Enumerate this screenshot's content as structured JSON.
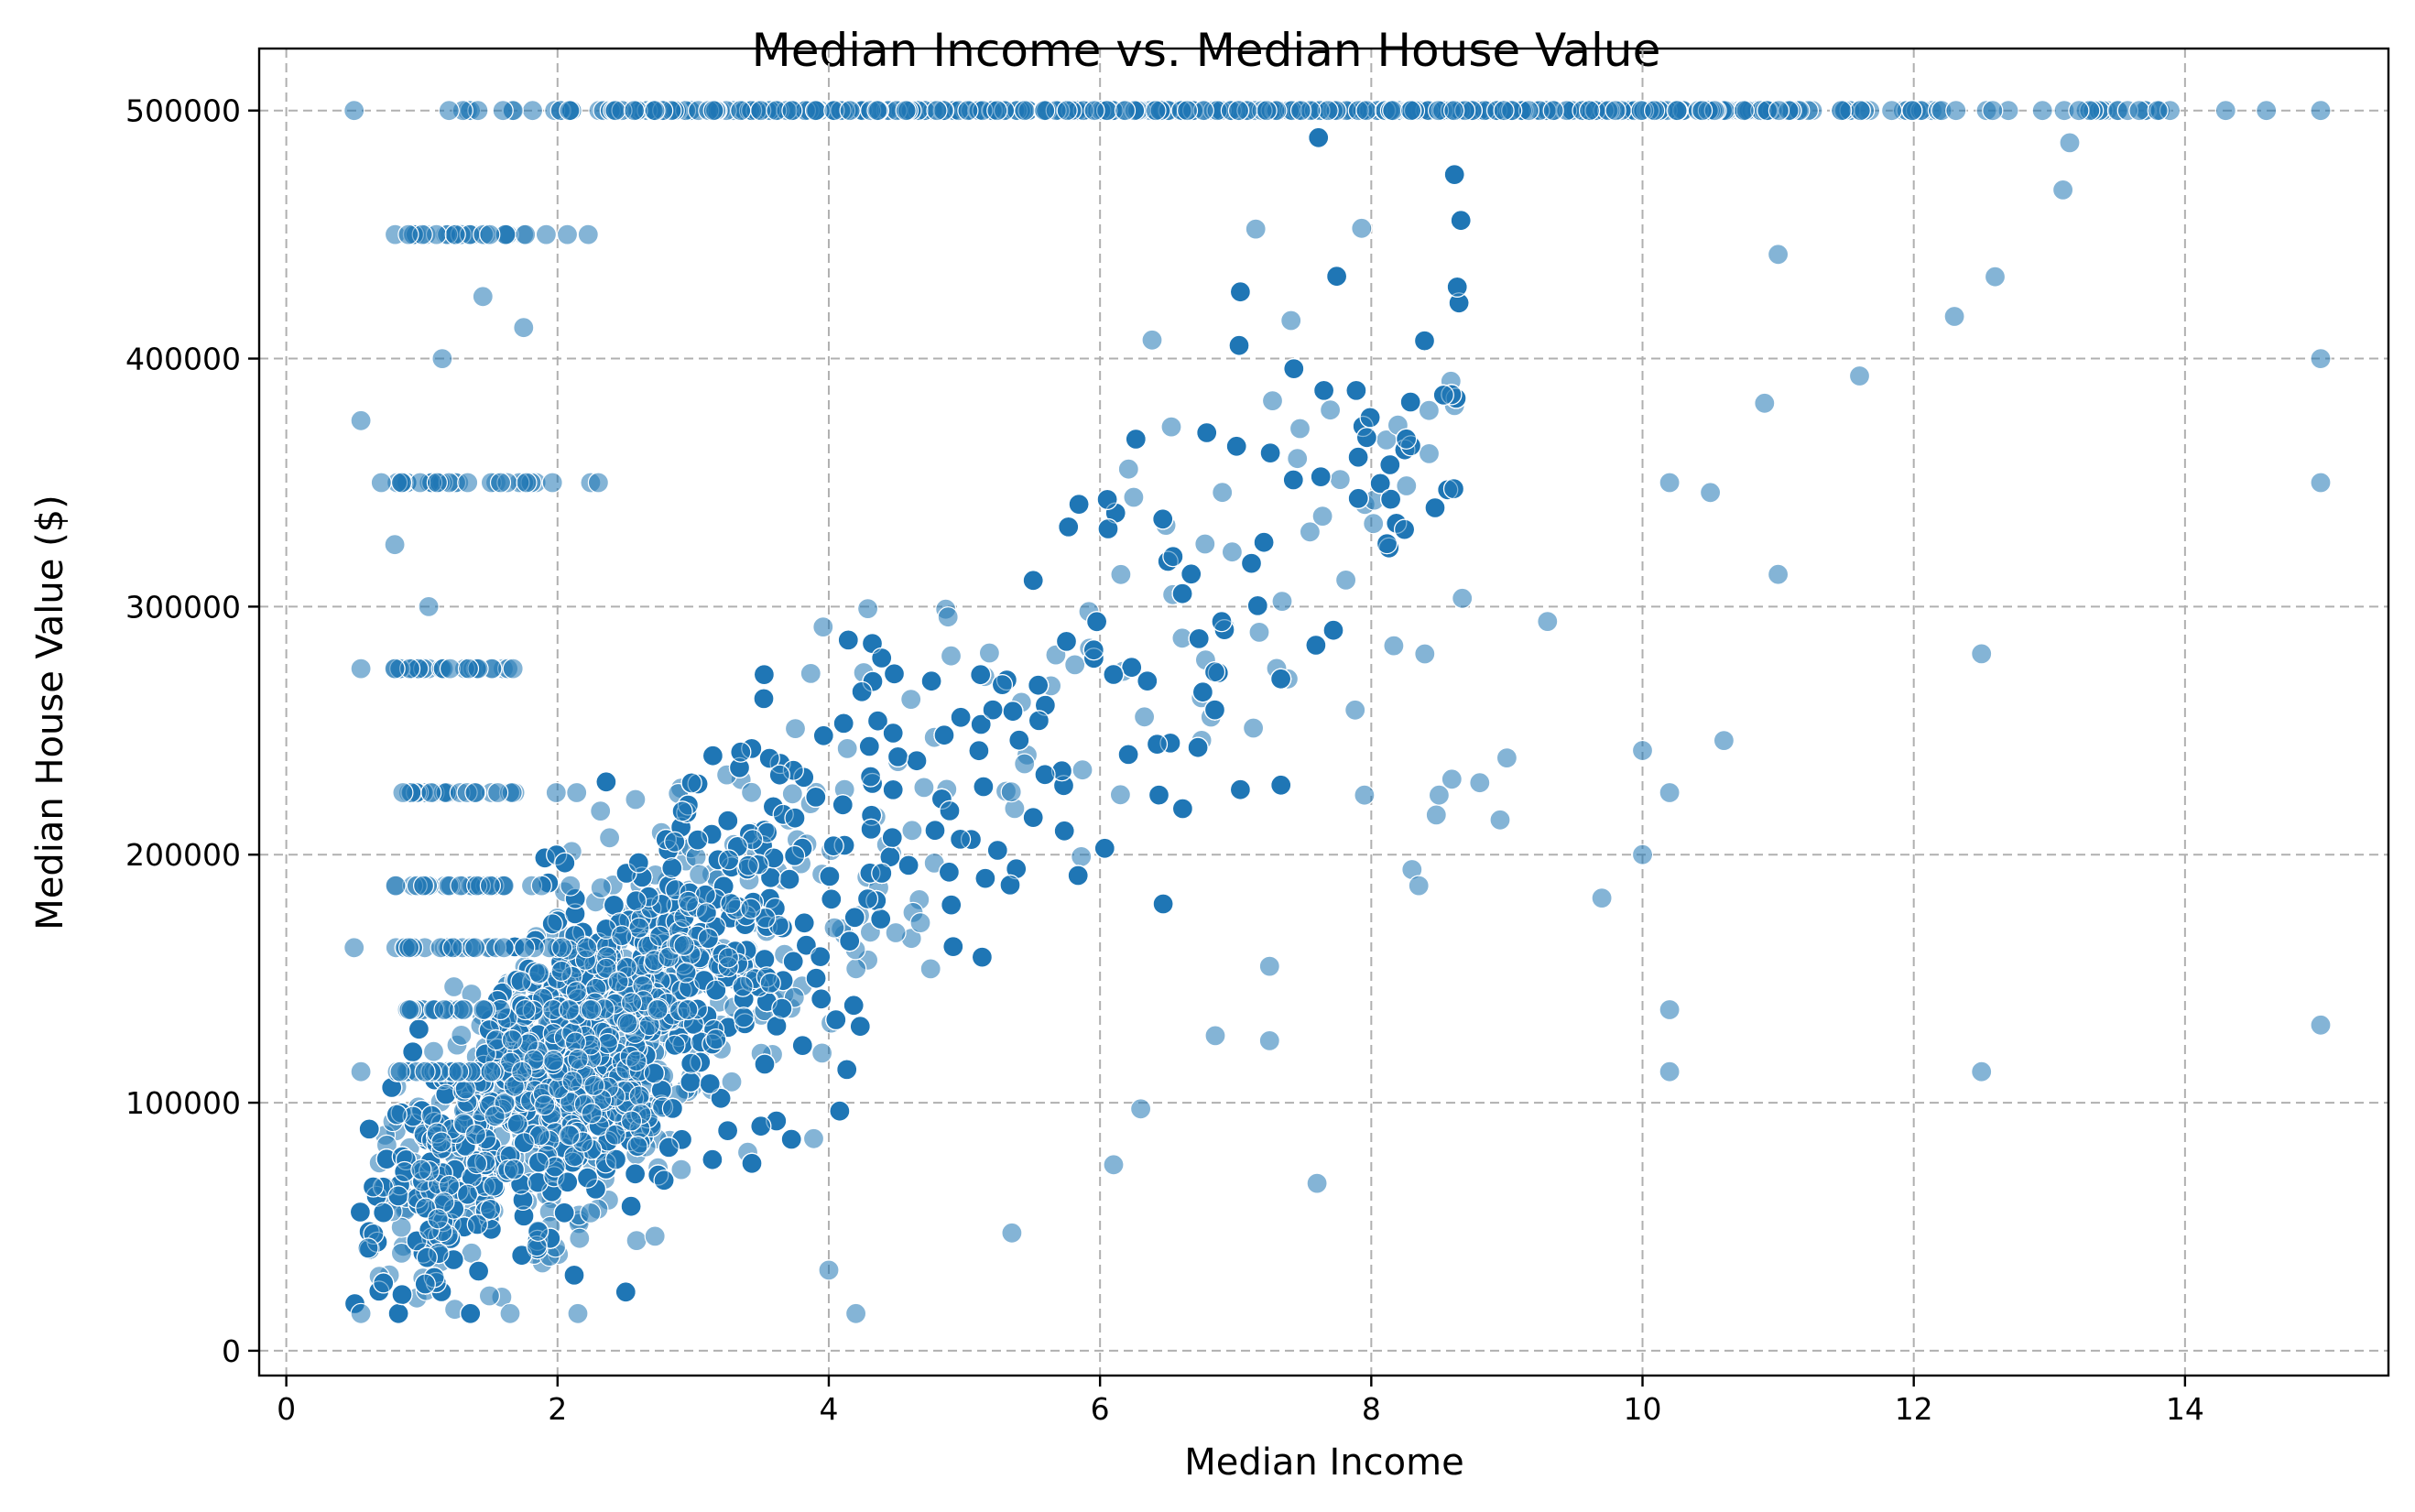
{
  "chart_data": {
    "type": "scatter",
    "title": "Median Income vs. Median House Value",
    "xlabel": "Median Income",
    "ylabel": "Median House Value ($)",
    "xlim": [
      -0.2,
      15.5
    ],
    "ylim": [
      -10000,
      525000
    ],
    "xticks": [
      0,
      2,
      4,
      6,
      8,
      10,
      12,
      14
    ],
    "yticks": [
      0,
      100000,
      200000,
      300000,
      400000,
      500000
    ],
    "grid": true,
    "point_color": "#1f77b4",
    "point_alpha": 0.55,
    "cap_value": 500001,
    "outliers": [
      {
        "x": 15.0,
        "y": 500001
      },
      {
        "x": 15.0,
        "y": 400000
      },
      {
        "x": 15.0,
        "y": 350000
      },
      {
        "x": 15.0,
        "y": 131300
      },
      {
        "x": 14.6,
        "y": 500001
      },
      {
        "x": 14.3,
        "y": 500001
      },
      {
        "x": 13.8,
        "y": 500001
      },
      {
        "x": 13.15,
        "y": 487000
      },
      {
        "x": 13.1,
        "y": 468000
      },
      {
        "x": 12.6,
        "y": 433000
      },
      {
        "x": 12.3,
        "y": 417000
      },
      {
        "x": 12.5,
        "y": 281000
      },
      {
        "x": 12.5,
        "y": 112500
      },
      {
        "x": 11.6,
        "y": 393000
      },
      {
        "x": 11.0,
        "y": 442000
      },
      {
        "x": 11.0,
        "y": 313000
      },
      {
        "x": 10.9,
        "y": 382000
      },
      {
        "x": 10.6,
        "y": 246000
      },
      {
        "x": 10.5,
        "y": 346000
      },
      {
        "x": 10.2,
        "y": 350000
      },
      {
        "x": 10.2,
        "y": 225000
      },
      {
        "x": 10.2,
        "y": 137500
      },
      {
        "x": 10.2,
        "y": 112500
      },
      {
        "x": 10.0,
        "y": 242000
      },
      {
        "x": 10.0,
        "y": 200000
      },
      {
        "x": 9.7,
        "y": 182500
      },
      {
        "x": 9.3,
        "y": 294000
      },
      {
        "x": 8.95,
        "y": 214000
      },
      {
        "x": 9.0,
        "y": 239000
      },
      {
        "x": 8.8,
        "y": 229000
      },
      {
        "x": 8.5,
        "y": 224000
      },
      {
        "x": 8.3,
        "y": 194000
      },
      {
        "x": 8.35,
        "y": 187500
      },
      {
        "x": 7.95,
        "y": 224000
      },
      {
        "x": 7.6,
        "y": 67500
      },
      {
        "x": 7.25,
        "y": 125000
      },
      {
        "x": 7.25,
        "y": 155000
      },
      {
        "x": 6.85,
        "y": 127000
      },
      {
        "x": 6.1,
        "y": 75000
      },
      {
        "x": 6.3,
        "y": 97500
      },
      {
        "x": 5.35,
        "y": 47500
      },
      {
        "x": 4.2,
        "y": 15000
      },
      {
        "x": 4.0,
        "y": 32500
      },
      {
        "x": 2.15,
        "y": 15000
      },
      {
        "x": 1.65,
        "y": 15000
      },
      {
        "x": 0.55,
        "y": 15000
      },
      {
        "x": 0.5,
        "y": 500001
      },
      {
        "x": 0.9,
        "y": 450000
      },
      {
        "x": 0.55,
        "y": 375000
      },
      {
        "x": 0.55,
        "y": 275000
      },
      {
        "x": 0.8,
        "y": 275000
      },
      {
        "x": 0.5,
        "y": 162500
      },
      {
        "x": 0.55,
        "y": 112500
      },
      {
        "x": 1.15,
        "y": 400000
      },
      {
        "x": 0.85,
        "y": 350000
      },
      {
        "x": 0.7,
        "y": 350000
      },
      {
        "x": 0.8,
        "y": 325000
      },
      {
        "x": 1.05,
        "y": 300000
      },
      {
        "x": 1.2,
        "y": 500001
      },
      {
        "x": 1.5,
        "y": 450000
      },
      {
        "x": 1.45,
        "y": 425000
      },
      {
        "x": 1.75,
        "y": 412500
      }
    ]
  }
}
